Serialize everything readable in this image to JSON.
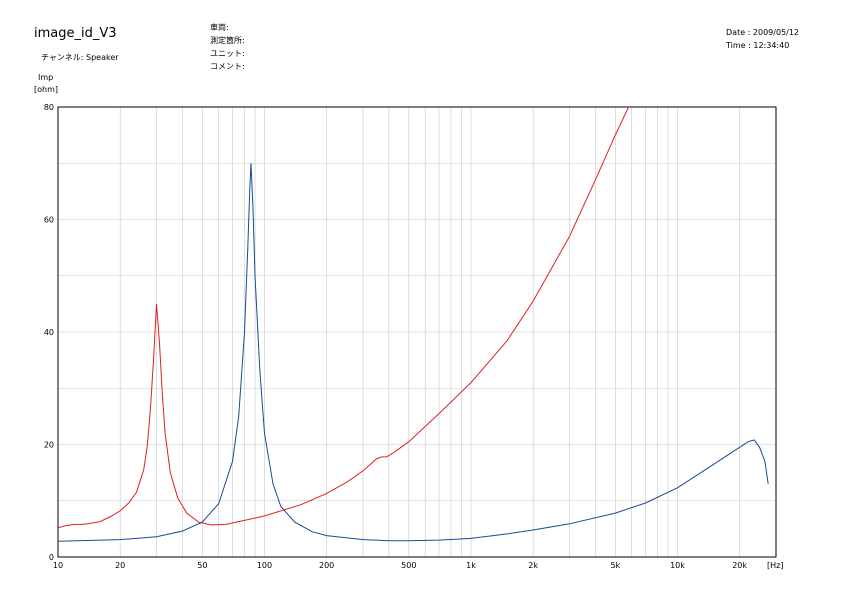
{
  "header": {
    "title": "image_id_V3",
    "channel_line": "チャンネル: Speaker",
    "info_lines": [
      "車両:",
      "測定箇所:",
      "ユニット:",
      "コメント:"
    ],
    "date_line": "Date : 2009/05/12",
    "time_line": "Time : 12:34:40"
  },
  "chart_data": {
    "type": "line",
    "title": "",
    "xlabel": "[Hz]",
    "ylabel": "Imp [ohm]",
    "ylabel_lines": [
      "Imp",
      "[ohm]"
    ],
    "xscale": "log",
    "xlim": [
      10,
      30000
    ],
    "ylim": [
      0,
      80
    ],
    "grid": true,
    "legend": "none",
    "y_ticks": [
      0,
      20,
      40,
      60,
      80
    ],
    "x_ticks": [
      {
        "value": 10,
        "label": "10"
      },
      {
        "value": 20,
        "label": "20"
      },
      {
        "value": 50,
        "label": "50"
      },
      {
        "value": 100,
        "label": "100"
      },
      {
        "value": 200,
        "label": "200"
      },
      {
        "value": 500,
        "label": "500"
      },
      {
        "value": 1000,
        "label": "1k"
      },
      {
        "value": 2000,
        "label": "2k"
      },
      {
        "value": 5000,
        "label": "5k"
      },
      {
        "value": 10000,
        "label": "10k"
      },
      {
        "value": 20000,
        "label": "20k"
      }
    ],
    "series": [
      {
        "color": "#e02020",
        "points": [
          [
            10,
            5.2
          ],
          [
            11,
            5.6
          ],
          [
            12,
            5.8
          ],
          [
            13,
            5.8
          ],
          [
            14,
            5.9
          ],
          [
            16,
            6.3
          ],
          [
            18,
            7.2
          ],
          [
            20,
            8.2
          ],
          [
            22,
            9.6
          ],
          [
            24,
            11.5
          ],
          [
            26,
            15.5
          ],
          [
            27,
            19.5
          ],
          [
            28,
            26
          ],
          [
            29,
            35
          ],
          [
            30,
            45
          ],
          [
            31,
            38
          ],
          [
            32,
            29
          ],
          [
            33,
            22
          ],
          [
            35,
            15
          ],
          [
            38,
            10.5
          ],
          [
            42,
            7.8
          ],
          [
            48,
            6.2
          ],
          [
            55,
            5.7
          ],
          [
            65,
            5.8
          ],
          [
            80,
            6.5
          ],
          [
            100,
            7.3
          ],
          [
            150,
            9.3
          ],
          [
            200,
            11.3
          ],
          [
            250,
            13.3
          ],
          [
            300,
            15.3
          ],
          [
            350,
            17.5
          ],
          [
            370,
            17.8
          ],
          [
            390,
            17.8
          ],
          [
            420,
            18.5
          ],
          [
            500,
            20.5
          ],
          [
            700,
            25.5
          ],
          [
            1000,
            31
          ],
          [
            1500,
            38.5
          ],
          [
            2000,
            45.5
          ],
          [
            3000,
            57
          ],
          [
            4000,
            67
          ],
          [
            5000,
            75
          ],
          [
            5800,
            80
          ]
        ]
      },
      {
        "color": "#1a4a94",
        "points": [
          [
            10,
            2.8
          ],
          [
            20,
            3.1
          ],
          [
            30,
            3.6
          ],
          [
            40,
            4.6
          ],
          [
            50,
            6.2
          ],
          [
            60,
            9.5
          ],
          [
            70,
            17
          ],
          [
            75,
            25
          ],
          [
            80,
            40
          ],
          [
            83,
            55
          ],
          [
            85,
            66
          ],
          [
            86,
            70
          ],
          [
            88,
            62
          ],
          [
            90,
            50
          ],
          [
            95,
            33
          ],
          [
            100,
            22
          ],
          [
            110,
            13
          ],
          [
            120,
            9
          ],
          [
            140,
            6.2
          ],
          [
            170,
            4.5
          ],
          [
            200,
            3.8
          ],
          [
            300,
            3.1
          ],
          [
            400,
            2.9
          ],
          [
            500,
            2.9
          ],
          [
            700,
            3.0
          ],
          [
            1000,
            3.3
          ],
          [
            1500,
            4.1
          ],
          [
            2000,
            4.8
          ],
          [
            3000,
            5.9
          ],
          [
            5000,
            7.8
          ],
          [
            7000,
            9.6
          ],
          [
            10000,
            12.3
          ],
          [
            15000,
            16.5
          ],
          [
            20000,
            19.5
          ],
          [
            22000,
            20.5
          ],
          [
            23500,
            20.8
          ],
          [
            25000,
            19.5
          ],
          [
            26500,
            17
          ],
          [
            27500,
            13
          ]
        ]
      }
    ]
  }
}
